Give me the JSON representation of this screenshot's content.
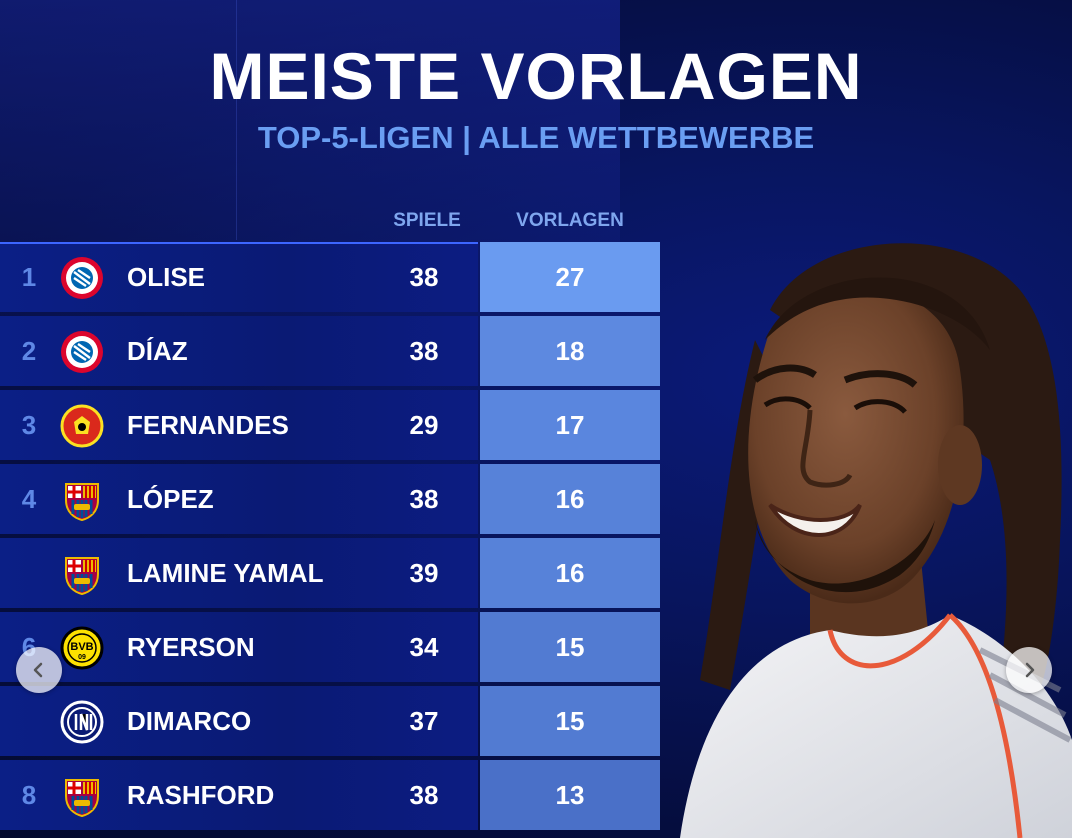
{
  "header": {
    "title": "MEISTE VORLAGEN",
    "subtitle": "TOP-5-LIGEN | ALLE WETTBEWERBE"
  },
  "columns": {
    "games": "SPIELE",
    "assists": "VORLAGEN"
  },
  "rows": [
    {
      "rank": "1",
      "player": "OLISE",
      "games": "38",
      "assists": "27",
      "crest": "fc-bayern-crest-icon",
      "assists_color": "#6a9bf0"
    },
    {
      "rank": "2",
      "player": "DÍAZ",
      "games": "38",
      "assists": "18",
      "crest": "fc-bayern-crest-icon",
      "assists_color": "#5d89e0"
    },
    {
      "rank": "3",
      "player": "FERNANDES",
      "games": "29",
      "assists": "17",
      "crest": "manchester-united-crest-icon",
      "assists_color": "#5a86de"
    },
    {
      "rank": "4",
      "player": "LÓPEZ",
      "games": "38",
      "assists": "16",
      "crest": "fc-barcelona-crest-icon",
      "assists_color": "#5782d9"
    },
    {
      "rank": "",
      "player": "LAMINE YAMAL",
      "games": "39",
      "assists": "16",
      "crest": "fc-barcelona-crest-icon",
      "assists_color": "#5782d9"
    },
    {
      "rank": "6",
      "player": "RYERSON",
      "games": "34",
      "assists": "15",
      "crest": "bvb-crest-icon",
      "assists_color": "#527bd2"
    },
    {
      "rank": "",
      "player": "DIMARCO",
      "games": "37",
      "assists": "15",
      "crest": "inter-crest-icon",
      "assists_color": "#527bd2"
    },
    {
      "rank": "8",
      "player": "RASHFORD",
      "games": "38",
      "assists": "13",
      "crest": "fc-barcelona-crest-icon",
      "assists_color": "#4a70c8"
    }
  ],
  "nav": {
    "prev_icon": "chevron-left-icon",
    "next_icon": "chevron-right-icon"
  },
  "colors": {
    "accent": "#6a9ef2",
    "background": "#08155e",
    "row": "#0b1f86"
  }
}
